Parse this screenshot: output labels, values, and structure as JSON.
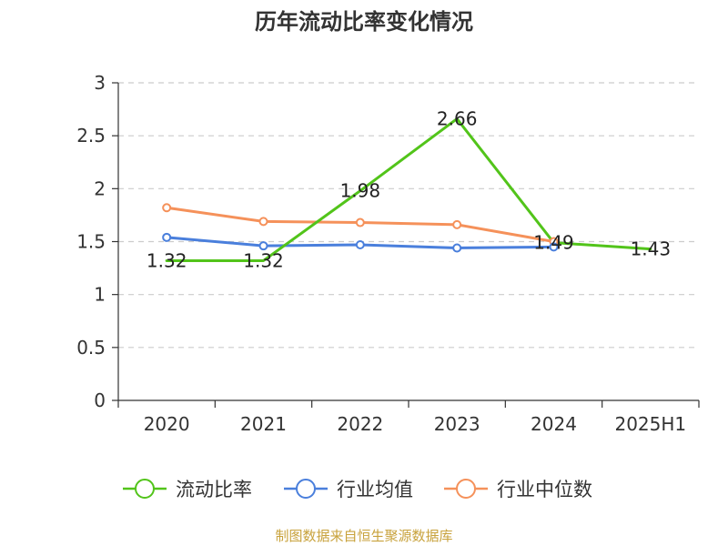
{
  "chart_data": {
    "type": "line",
    "title": "历年流动比率变化情况",
    "categories": [
      "2020",
      "2021",
      "2022",
      "2023",
      "2024",
      "2025H1"
    ],
    "ylim": [
      0,
      3
    ],
    "yticks": [
      "0",
      "0.5",
      "1",
      "1.5",
      "2",
      "2.5",
      "3"
    ],
    "ytick_values": [
      0,
      0.5,
      1,
      1.5,
      2,
      2.5,
      3
    ],
    "grid": true,
    "legend_position": "bottom",
    "series": [
      {
        "name": "流动比率",
        "color": "#52c41a",
        "values": [
          1.32,
          1.32,
          1.98,
          2.66,
          1.49,
          1.43
        ],
        "labels": [
          "1.32",
          "1.32",
          "1.98",
          "2.66",
          "1.49",
          "1.43"
        ],
        "show_labels": true,
        "show_markers": false
      },
      {
        "name": "行业均值",
        "color": "#4a7fdc",
        "values": [
          1.54,
          1.46,
          1.47,
          1.44,
          1.45,
          null
        ],
        "show_labels": false,
        "show_markers": true
      },
      {
        "name": "行业中位数",
        "color": "#f5915a",
        "values": [
          1.82,
          1.69,
          1.68,
          1.66,
          1.5,
          null
        ],
        "show_labels": false,
        "show_markers": true
      }
    ]
  },
  "source": "制图数据来自恒生聚源数据库"
}
